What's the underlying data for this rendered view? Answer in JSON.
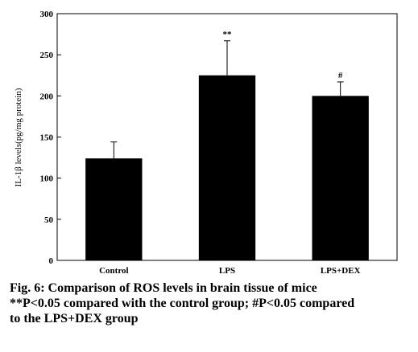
{
  "chart_data": {
    "type": "bar",
    "ylabel": "IL-1β levels(pg/mg protein)",
    "xlabel": "",
    "ylim": [
      0,
      300
    ],
    "yticks": [
      0,
      50,
      100,
      150,
      200,
      250,
      300
    ],
    "categories": [
      "Control",
      "LPS",
      "LPS+DEX"
    ],
    "values": [
      124,
      225,
      200
    ],
    "error_plus": [
      20,
      42,
      17
    ],
    "annotations": [
      "",
      "**",
      "#"
    ],
    "bar_color": "#000000",
    "grid": false
  },
  "caption": {
    "line1": "Fig. 6: Comparison of ROS levels in brain tissue of mice",
    "line2": "**P<0.05 compared with the control group; #P<0.05 compared",
    "line3": "to the LPS+DEX group"
  }
}
